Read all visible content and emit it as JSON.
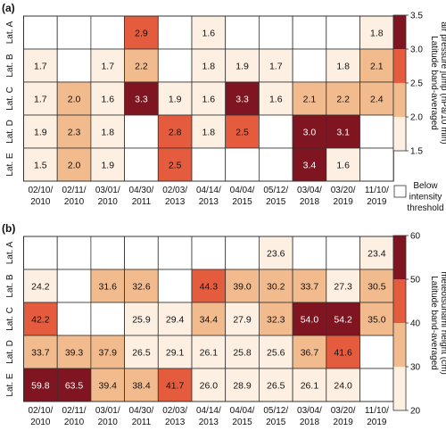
{
  "chart_data": [
    {
      "type": "heatmap",
      "panel_label": "(a)",
      "rows": [
        "Lat. A",
        "Lat. B",
        "Lat. C",
        "Lat. D",
        "Lat. E"
      ],
      "columns": [
        [
          "02/10/",
          "2010"
        ],
        [
          "02/11/",
          "2010"
        ],
        [
          "03/01/",
          "2010"
        ],
        [
          "04/30/",
          "2011"
        ],
        [
          "02/03/",
          "2013"
        ],
        [
          "04/14/",
          "2013"
        ],
        [
          "04/04/",
          "2015"
        ],
        [
          "05/12/",
          "2015"
        ],
        [
          "03/04/",
          "2018"
        ],
        [
          "03/20/",
          "2019"
        ],
        [
          "11/10/",
          "2019"
        ]
      ],
      "values": [
        [
          null,
          null,
          null,
          2.9,
          null,
          1.6,
          null,
          null,
          null,
          null,
          1.8
        ],
        [
          1.7,
          null,
          1.7,
          2.2,
          null,
          1.8,
          1.9,
          1.7,
          null,
          1.8,
          2.1
        ],
        [
          1.7,
          2.0,
          1.6,
          3.3,
          1.9,
          1.6,
          3.3,
          1.6,
          2.1,
          2.2,
          2.4
        ],
        [
          1.9,
          2.3,
          1.8,
          null,
          2.8,
          1.8,
          2.5,
          null,
          3.0,
          3.1,
          null
        ],
        [
          1.5,
          2.0,
          1.9,
          null,
          2.5,
          null,
          null,
          null,
          3.4,
          1.6,
          null
        ]
      ],
      "colorbar": {
        "label_lines": [
          "Latitude band-averaged",
          "air pressure jump (hPa/10 min)"
        ],
        "ticks": [
          "1.5",
          "2.0",
          "2.5",
          "3.0",
          "3.5"
        ],
        "range": [
          1.5,
          3.5
        ]
      },
      "empty_legend": [
        "Below",
        "intensity",
        "threshold"
      ]
    },
    {
      "type": "heatmap",
      "panel_label": "(b)",
      "rows": [
        "Lat. A",
        "Lat. B",
        "Lat. C",
        "Lat. D",
        "Lat. E"
      ],
      "columns": [
        [
          "02/10/",
          "2010"
        ],
        [
          "02/11/",
          "2010"
        ],
        [
          "03/01/",
          "2010"
        ],
        [
          "04/30/",
          "2011"
        ],
        [
          "02/03/",
          "2013"
        ],
        [
          "04/14/",
          "2013"
        ],
        [
          "04/04/",
          "2015"
        ],
        [
          "05/12/",
          "2015"
        ],
        [
          "03/04/",
          "2018"
        ],
        [
          "03/20/",
          "2019"
        ],
        [
          "11/10/",
          "2019"
        ]
      ],
      "values": [
        [
          null,
          null,
          null,
          null,
          null,
          null,
          null,
          23.6,
          null,
          null,
          23.4
        ],
        [
          24.2,
          null,
          31.6,
          32.6,
          null,
          44.3,
          39.0,
          30.2,
          33.7,
          27.3,
          30.5
        ],
        [
          42.2,
          null,
          null,
          25.9,
          29.4,
          34.4,
          27.9,
          32.3,
          54.0,
          54.2,
          35.0
        ],
        [
          33.7,
          39.3,
          37.9,
          26.5,
          29.1,
          26.1,
          25.8,
          25.6,
          36.7,
          41.6,
          null
        ],
        [
          59.8,
          63.5,
          39.4,
          38.4,
          41.7,
          26.0,
          28.9,
          26.5,
          26.1,
          24.0,
          null
        ]
      ],
      "colorbar": {
        "label_lines": [
          "Latitude band-averaged",
          "meteotsunami height (cm)"
        ],
        "ticks": [
          "20",
          "30",
          "40",
          "50",
          "60"
        ],
        "range": [
          20,
          60
        ]
      }
    }
  ],
  "colors": {
    "bins": [
      "#fdf0e2",
      "#f2bb8e",
      "#e45c3d",
      "#7e1520"
    ],
    "grid": "#333333",
    "text": "#111111"
  }
}
